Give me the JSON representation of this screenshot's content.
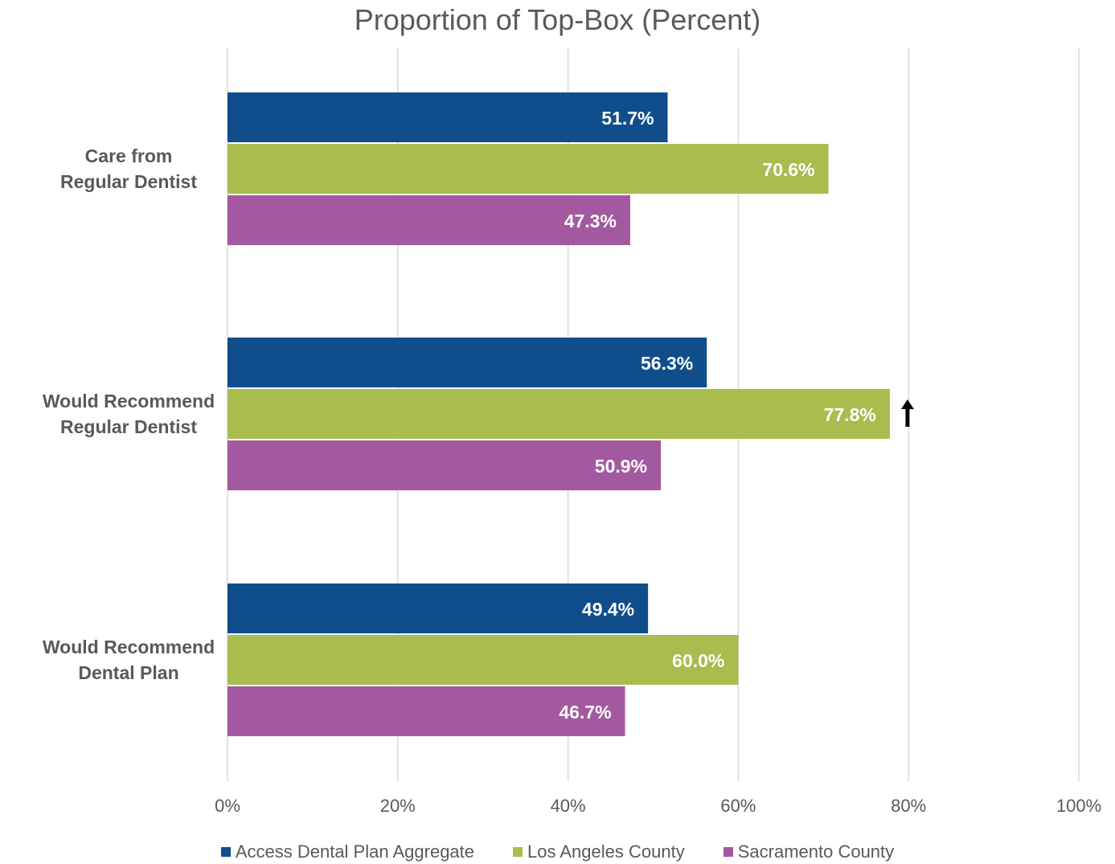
{
  "chart_data": {
    "type": "bar",
    "orientation": "horizontal",
    "title": "Proportion of Top-Box (Percent)",
    "xlabel": "",
    "ylabel": "",
    "xlim": [
      0,
      100
    ],
    "x_ticks": [
      "0%",
      "20%",
      "40%",
      "60%",
      "80%",
      "100%"
    ],
    "categories": [
      "Care from Regular Dentist",
      "Would Recommend Regular Dentist",
      "Would Recommend Dental Plan"
    ],
    "category_lines": [
      [
        "Care from",
        "Regular Dentist"
      ],
      [
        "Would Recommend",
        "Regular Dentist"
      ],
      [
        "Would Recommend",
        "Dental Plan"
      ]
    ],
    "series": [
      {
        "name": "Access Dental Plan Aggregate",
        "color": "#104e8b",
        "values": [
          51.7,
          56.3,
          49.4
        ],
        "labels": [
          "51.7%",
          "56.3%",
          "49.4%"
        ]
      },
      {
        "name": "Los Angeles County",
        "color": "#a9bd4e",
        "values": [
          70.6,
          77.8,
          60.0
        ],
        "labels": [
          "70.6%",
          "77.8%",
          "60.0%"
        ]
      },
      {
        "name": "Sacramento County",
        "color": "#a3599f",
        "values": [
          47.3,
          50.9,
          46.7
        ],
        "labels": [
          "47.3%",
          "50.9%",
          "46.7%"
        ]
      }
    ],
    "annotations": [
      {
        "category": 1,
        "series": 1,
        "icon": "up-arrow-icon",
        "meaning": "significantly higher"
      }
    ],
    "grid": true,
    "legend_position": "bottom"
  }
}
